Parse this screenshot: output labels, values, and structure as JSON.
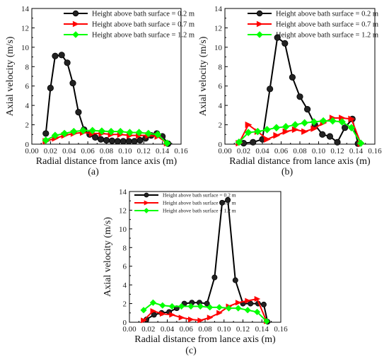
{
  "figure": {
    "panel_labels": [
      "(a)",
      "(b)",
      "(c)"
    ]
  },
  "colors": {
    "series": [
      "#000000",
      "#ff0000",
      "#00ff00"
    ],
    "marker_fill": [
      "#222222",
      "#ff0000",
      "#00ff00"
    ]
  },
  "chart_data": [
    {
      "type": "line",
      "panel": "(a)",
      "xlabel": "Radial distance from lance axis (m)",
      "ylabel": "Axial velocity (m/s)",
      "xlim": [
        0.0,
        0.16
      ],
      "ylim": [
        0,
        14
      ],
      "xticks": [
        "0.00",
        "0.02",
        "0.04",
        "0.06",
        "0.08",
        "0.10",
        "0.12",
        "0.14",
        "0.16"
      ],
      "yticks": [
        "0",
        "2",
        "4",
        "6",
        "8",
        "10",
        "12",
        "14"
      ],
      "legend_position": "top-left",
      "series": [
        {
          "name": "Height above bath surface = 0.2 m",
          "marker": "circle",
          "x": [
            0.015,
            0.02,
            0.025,
            0.032,
            0.038,
            0.044,
            0.05,
            0.056,
            0.062,
            0.068,
            0.074,
            0.08,
            0.086,
            0.092,
            0.098,
            0.104,
            0.11,
            0.116,
            0.122,
            0.128,
            0.134,
            0.14,
            0.146
          ],
          "y": [
            1.1,
            5.8,
            9.1,
            9.2,
            8.4,
            6.3,
            3.3,
            1.5,
            1.0,
            0.7,
            0.5,
            0.4,
            0.35,
            0.3,
            0.3,
            0.3,
            0.3,
            0.4,
            0.6,
            0.9,
            1.1,
            0.8,
            0.05
          ]
        },
        {
          "name": "Height above bath surface = 0.7 m",
          "marker": "triangle-right",
          "x": [
            0.015,
            0.025,
            0.035,
            0.045,
            0.055,
            0.065,
            0.075,
            0.085,
            0.095,
            0.105,
            0.115,
            0.125,
            0.135,
            0.145
          ],
          "y": [
            0.3,
            0.6,
            0.9,
            1.1,
            1.2,
            1.1,
            1.1,
            1.0,
            1.0,
            0.9,
            0.9,
            0.9,
            0.8,
            0.1
          ]
        },
        {
          "name": "Height above bath surface = 1.2 m",
          "marker": "diamond",
          "x": [
            0.015,
            0.025,
            0.035,
            0.045,
            0.055,
            0.065,
            0.075,
            0.085,
            0.095,
            0.105,
            0.115,
            0.125,
            0.135,
            0.145
          ],
          "y": [
            0.4,
            0.9,
            1.1,
            1.3,
            1.4,
            1.4,
            1.35,
            1.3,
            1.3,
            1.2,
            1.2,
            1.1,
            1.0,
            0.1
          ]
        }
      ]
    },
    {
      "type": "line",
      "panel": "(b)",
      "xlabel": "Radial distance from lance axis (m)",
      "ylabel": "Axial velocity (m/s)",
      "xlim": [
        0.0,
        0.16
      ],
      "ylim": [
        0,
        14
      ],
      "xticks": [
        "0.00",
        "0.02",
        "0.04",
        "0.06",
        "0.08",
        "0.10",
        "0.12",
        "0.14",
        "0.16"
      ],
      "yticks": [
        "0",
        "2",
        "4",
        "6",
        "8",
        "10",
        "12",
        "14"
      ],
      "legend_position": "top-right",
      "series": [
        {
          "name": "Height above bath surface = 0.2 m",
          "marker": "circle",
          "x": [
            0.02,
            0.03,
            0.04,
            0.048,
            0.056,
            0.064,
            0.072,
            0.08,
            0.088,
            0.096,
            0.104,
            0.112,
            0.12,
            0.128,
            0.136,
            0.142
          ],
          "y": [
            0.1,
            0.2,
            0.5,
            5.7,
            11.0,
            10.4,
            6.9,
            4.9,
            3.6,
            2.0,
            1.0,
            0.8,
            0.2,
            1.7,
            2.6,
            0.05
          ]
        },
        {
          "name": "Height above bath surface = 0.7 m",
          "marker": "triangle-right",
          "x": [
            0.015,
            0.025,
            0.035,
            0.045,
            0.055,
            0.065,
            0.075,
            0.085,
            0.095,
            0.105,
            0.115,
            0.125,
            0.135,
            0.145
          ],
          "y": [
            0.1,
            2.0,
            1.3,
            0.5,
            0.9,
            1.3,
            1.5,
            1.3,
            1.6,
            2.2,
            2.7,
            2.7,
            2.6,
            0.05
          ]
        },
        {
          "name": "Height above bath surface = 1.2 m",
          "marker": "diamond",
          "x": [
            0.015,
            0.025,
            0.035,
            0.045,
            0.055,
            0.065,
            0.075,
            0.085,
            0.095,
            0.105,
            0.115,
            0.125,
            0.135,
            0.145
          ],
          "y": [
            0.2,
            1.2,
            1.3,
            1.5,
            1.7,
            1.8,
            2.0,
            2.2,
            2.3,
            2.4,
            2.4,
            2.3,
            1.7,
            0.1
          ]
        }
      ]
    },
    {
      "type": "line",
      "panel": "(c)",
      "xlabel": "Radial distance from lance axis (m)",
      "ylabel": "Axial velocity (m/s)",
      "xlim": [
        0.0,
        0.16
      ],
      "ylim": [
        0,
        14
      ],
      "xticks": [
        "0.00",
        "0.02",
        "0.04",
        "0.06",
        "0.08",
        "0.10",
        "0.12",
        "0.14",
        "0.16"
      ],
      "yticks": [
        "0",
        "2",
        "4",
        "6",
        "8",
        "10",
        "12",
        "14"
      ],
      "legend_position": "top-left",
      "series": [
        {
          "name": "Height above bath surface = 0.2 m",
          "marker": "circle",
          "x": [
            0.018,
            0.026,
            0.034,
            0.042,
            0.05,
            0.058,
            0.066,
            0.074,
            0.082,
            0.09,
            0.098,
            0.104,
            0.112,
            0.12,
            0.128,
            0.136,
            0.142,
            0.146
          ],
          "y": [
            0.3,
            0.8,
            1.0,
            1.1,
            1.5,
            2.0,
            2.1,
            2.1,
            2.0,
            4.8,
            12.8,
            13.1,
            4.5,
            2.0,
            2.0,
            2.0,
            1.9,
            0.05
          ]
        },
        {
          "name": "Height above bath surface = 0.7 m",
          "marker": "triangle-right",
          "x": [
            0.015,
            0.025,
            0.035,
            0.045,
            0.055,
            0.065,
            0.075,
            0.085,
            0.095,
            0.105,
            0.115,
            0.125,
            0.135,
            0.145
          ],
          "y": [
            0.2,
            1.2,
            0.9,
            0.8,
            0.5,
            0.3,
            0.2,
            0.5,
            1.0,
            1.7,
            2.1,
            2.3,
            2.5,
            0.1
          ]
        },
        {
          "name": "Height above bath surface = 1.2 m",
          "marker": "diamond",
          "x": [
            0.015,
            0.025,
            0.035,
            0.045,
            0.055,
            0.065,
            0.075,
            0.085,
            0.095,
            0.105,
            0.115,
            0.125,
            0.135,
            0.145
          ],
          "y": [
            1.3,
            2.1,
            1.8,
            1.7,
            1.7,
            1.7,
            1.7,
            1.6,
            1.6,
            1.5,
            1.5,
            1.3,
            1.1,
            0.1
          ]
        }
      ]
    }
  ]
}
